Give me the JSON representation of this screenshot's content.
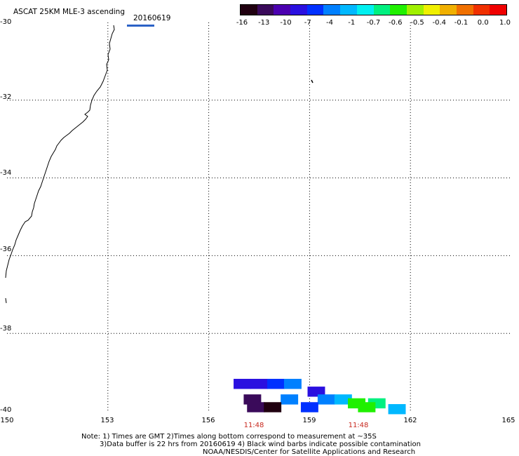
{
  "title": "ASCAT 25KM MLE-3 ascending",
  "date": "20160619",
  "colors": {
    "date_line": "#2b62c6",
    "time_labels": "#c8281e"
  },
  "colorbar": {
    "labels": [
      "-16",
      "-13",
      "-10",
      "-7",
      "-4",
      "-1",
      "-0.7",
      "-0.6",
      "-0.5",
      "-0.4",
      "-0.1",
      "0.0",
      "1.0"
    ],
    "colors": [
      "#200010",
      "#3a0a5a",
      "#4b00b0",
      "#2a10e0",
      "#0030ff",
      "#0080ff",
      "#00b8ff",
      "#00f0f0",
      "#00f080",
      "#20f000",
      "#a0f000",
      "#f0f000",
      "#f0b000",
      "#f07000",
      "#f03000",
      "#f00000"
    ]
  },
  "map": {
    "lat_labels": [
      "-30",
      "-32",
      "-34",
      "-36",
      "-38",
      "-40"
    ],
    "lon_labels": [
      "150",
      "153",
      "156",
      "159",
      "162",
      "165"
    ],
    "time_labels": [
      "11:48",
      "11:48"
    ]
  },
  "chart_data": {
    "type": "heatmap",
    "title": "ASCAT 25KM MLE-3 ascending",
    "xlabel": "",
    "ylabel": "",
    "xlim": [
      150,
      165
    ],
    "ylim": [
      -40,
      -30
    ],
    "grid": true,
    "colorbar_ticks": [
      -16,
      -13,
      -10,
      -7,
      -4,
      -1,
      -0.7,
      -0.6,
      -0.5,
      -0.4,
      -0.1,
      0.0,
      1.0
    ],
    "cells": [
      {
        "lon": 157.0,
        "lat": -39.3,
        "value": -10
      },
      {
        "lon": 157.5,
        "lat": -39.3,
        "value": -10
      },
      {
        "lon": 158.0,
        "lat": -39.3,
        "value": -7
      },
      {
        "lon": 158.5,
        "lat": -39.3,
        "value": -4
      },
      {
        "lon": 159.2,
        "lat": -39.5,
        "value": -10
      },
      {
        "lon": 157.3,
        "lat": -39.7,
        "value": -13
      },
      {
        "lon": 158.4,
        "lat": -39.7,
        "value": -4
      },
      {
        "lon": 159.5,
        "lat": -39.7,
        "value": -4
      },
      {
        "lon": 160.0,
        "lat": -39.7,
        "value": -1
      },
      {
        "lon": 160.4,
        "lat": -39.8,
        "value": -0.6
      },
      {
        "lon": 161.0,
        "lat": -39.8,
        "value": -0.7
      },
      {
        "lon": 157.4,
        "lat": -39.9,
        "value": -13
      },
      {
        "lon": 157.9,
        "lat": -39.9,
        "value": -16
      },
      {
        "lon": 159.0,
        "lat": -39.9,
        "value": -7
      },
      {
        "lon": 160.7,
        "lat": -39.9,
        "value": -0.6
      },
      {
        "lon": 161.6,
        "lat": -39.95,
        "value": -1
      }
    ]
  },
  "notes": {
    "line1": "Note: 1) Times are GMT 2)Times along bottom correspond to measurement at ~35S",
    "line2": "3)Data buffer is 22 hrs from 20160619 4) Black wind barbs indicate possible contamination",
    "line3": "NOAA/NESDIS/Center for Satellite Applications and Research"
  }
}
